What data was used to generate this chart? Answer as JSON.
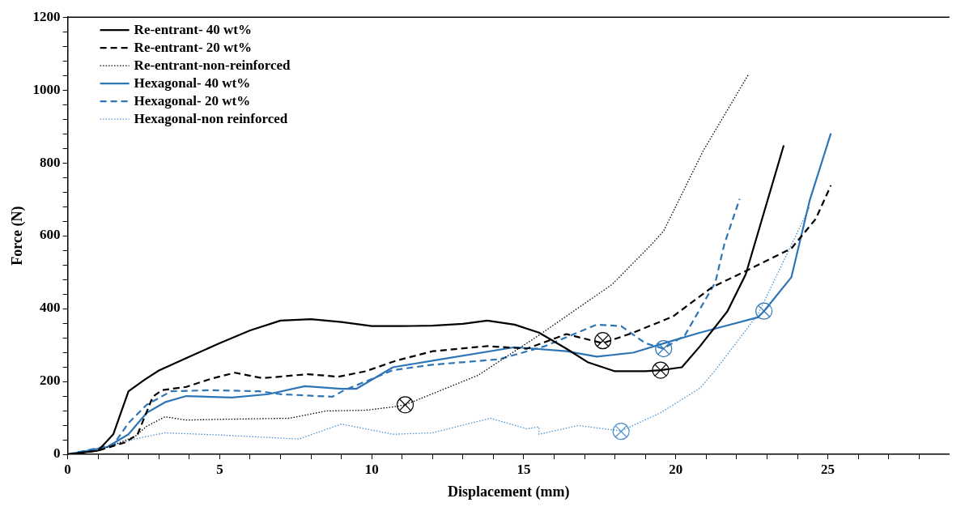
{
  "chart_data": {
    "type": "line",
    "xlabel": "Displacement (mm)",
    "ylabel": "Force (N)",
    "xlim": [
      0,
      29
    ],
    "ylim": [
      0,
      1200
    ],
    "xticks": [
      0,
      {
        "value": 1,
        "label": null
      },
      {
        "value": 2,
        "label": null
      },
      {
        "value": 3,
        "label": null
      },
      {
        "value": 4,
        "label": null
      },
      5,
      {
        "value": 6,
        "label": null
      },
      {
        "value": 7,
        "label": null
      },
      {
        "value": 8,
        "label": null
      },
      {
        "value": 9,
        "label": null
      },
      10,
      {
        "value": 11,
        "label": null
      },
      {
        "value": 12,
        "label": null
      },
      {
        "value": 13,
        "label": null
      },
      {
        "value": 14,
        "label": null
      },
      15,
      {
        "value": 16,
        "label": null
      },
      {
        "value": 17,
        "label": null
      },
      {
        "value": 18,
        "label": null
      },
      {
        "value": 19,
        "label": null
      },
      20,
      {
        "value": 21,
        "label": null
      },
      {
        "value": 22,
        "label": null
      },
      {
        "value": 23,
        "label": null
      },
      {
        "value": 24,
        "label": null
      },
      25,
      {
        "value": 26,
        "label": null
      },
      {
        "value": 27,
        "label": null
      },
      {
        "value": 28,
        "label": null
      }
    ],
    "yticks": [
      0,
      {
        "value": 40,
        "label": null
      },
      {
        "value": 80,
        "label": null
      },
      {
        "value": 120,
        "label": null
      },
      {
        "value": 160,
        "label": null
      },
      200,
      {
        "value": 240,
        "label": null
      },
      {
        "value": 280,
        "label": null
      },
      {
        "value": 320,
        "label": null
      },
      {
        "value": 360,
        "label": null
      },
      400,
      {
        "value": 440,
        "label": null
      },
      {
        "value": 480,
        "label": null
      },
      {
        "value": 520,
        "label": null
      },
      {
        "value": 560,
        "label": null
      },
      600,
      {
        "value": 640,
        "label": null
      },
      {
        "value": 680,
        "label": null
      },
      {
        "value": 720,
        "label": null
      },
      {
        "value": 760,
        "label": null
      },
      800,
      {
        "value": 840,
        "label": null
      },
      {
        "value": 880,
        "label": null
      },
      {
        "value": 920,
        "label": null
      },
      {
        "value": 960,
        "label": null
      },
      1000,
      {
        "value": 1040,
        "label": null
      },
      {
        "value": 1080,
        "label": null
      },
      {
        "value": 1120,
        "label": null
      },
      {
        "value": 1160,
        "label": null
      },
      1200
    ],
    "grid": false,
    "legend": "top left",
    "marker": "none",
    "series": [
      {
        "name": "Re-entrant- 40 wt%",
        "color": "#000000",
        "line_style": "solid",
        "x": [
          0,
          1,
          1.5,
          2,
          2.55,
          3,
          4,
          5,
          6,
          7,
          8,
          9,
          10,
          11,
          12,
          13,
          13.8,
          14.7,
          15.5,
          16.4,
          17.1,
          18,
          19,
          19.5,
          20.2,
          20.8,
          21.7,
          22.3,
          23.55
        ],
        "values": [
          0,
          10,
          55,
          173,
          206,
          230,
          268,
          305,
          340,
          367,
          371,
          363,
          352,
          352,
          353,
          358,
          367,
          356,
          334,
          290,
          253,
          228,
          228,
          231,
          239,
          297,
          393,
          494,
          848
        ]
      },
      {
        "name": "Re-entrant- 20 wt%",
        "color": "#000000",
        "line_style": "dashed",
        "x": [
          0,
          1,
          1.9,
          2.3,
          2.8,
          3.1,
          3.9,
          4.7,
          5.5,
          6.4,
          7.9,
          8.9,
          9.8,
          10.8,
          12,
          13.8,
          15.1,
          16.4,
          17.6,
          18.6,
          19.9,
          21.2,
          22.3,
          23.8,
          24.6,
          25.1
        ],
        "values": [
          0,
          10,
          33,
          55,
          158,
          176,
          185,
          207,
          224,
          209,
          220,
          213,
          228,
          257,
          283,
          297,
          290,
          330,
          305,
          334,
          378,
          459,
          503,
          565,
          646,
          738
        ]
      },
      {
        "name": "Re-entrant-non-reinforced",
        "color": "#000000",
        "line_style": "dotted",
        "x": [
          0,
          1,
          2.2,
          2.6,
          3.2,
          3.9,
          5,
          7.3,
          8.5,
          9.8,
          10.7,
          11.1,
          13.5,
          15.5,
          17,
          17.9,
          19.2,
          19.6,
          20.9,
          22.4
        ],
        "values": [
          0,
          10,
          48,
          77,
          103,
          94,
          96,
          99,
          119,
          121,
          130,
          136,
          217,
          327,
          414,
          466,
          576,
          613,
          833,
          1044
        ]
      },
      {
        "name": "Hexagonal- 40 wt%",
        "color": "#2e75b6",
        "line_style": "solid",
        "x": [
          0,
          1.3,
          2,
          2.6,
          3.2,
          3.9,
          5.4,
          6.6,
          7.8,
          9,
          9.5,
          10.7,
          12,
          14.7,
          16.4,
          17.4,
          18.6,
          19.9,
          20.8,
          21.3,
          22.7,
          22.9,
          23.8,
          24.4,
          25.1
        ],
        "values": [
          0,
          20,
          55,
          114,
          143,
          160,
          156,
          165,
          187,
          180,
          180,
          239,
          257,
          294,
          283,
          268,
          279,
          312,
          334,
          345,
          376,
          393,
          486,
          696,
          881
        ]
      },
      {
        "name": "Hexagonal- 20 wt%",
        "color": "#2e75b6",
        "line_style": "dashed",
        "x": [
          0,
          1.5,
          2,
          2.6,
          3.4,
          4.7,
          6.3,
          7,
          8.7,
          9.1,
          10.7,
          12,
          14.2,
          15.7,
          17.4,
          18.2,
          19,
          19.6,
          20.3,
          21.3,
          21.6,
          22.1
        ],
        "values": [
          0,
          26,
          86,
          136,
          173,
          176,
          173,
          165,
          158,
          176,
          231,
          246,
          261,
          297,
          356,
          352,
          305,
          290,
          327,
          472,
          578,
          701
        ]
      },
      {
        "name": "Hexagonal-non reinforced",
        "color": "#4a90d0",
        "line_style": "dotted",
        "x": [
          0,
          1,
          2.2,
          3.2,
          5,
          7.6,
          9,
          10.7,
          12,
          13.9,
          15.1,
          15.5,
          15.5,
          16.8,
          18.2,
          19.5,
          20.8,
          21.3,
          22.7,
          24.4
        ],
        "values": [
          0,
          12,
          42,
          59,
          53,
          42,
          83,
          55,
          59,
          99,
          70,
          75,
          55,
          79,
          64,
          114,
          182,
          231,
          384,
          679
        ]
      },
      {
        "type": "scatter",
        "marker": "cross",
        "x": [
          19.5,
          17.6,
          11.1,
          22.9,
          19.6,
          18.2
        ],
        "values": [
          231,
          312,
          136,
          393,
          290,
          63
        ],
        "colors": [
          "#000000",
          "#000000",
          "#000000",
          "#2e75b6",
          "#2e75b6",
          "#4a90d0"
        ]
      }
    ]
  }
}
